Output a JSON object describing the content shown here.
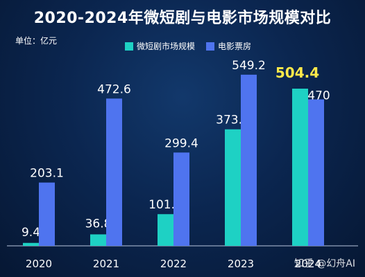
{
  "title": "2020-2024年微短剧与电影市场规模对比",
  "unit_label": "单位：亿元",
  "watermark": "知乎 @幻舟AI",
  "colors": {
    "short_drama": "#1ed1c4",
    "box_office": "#4f74ef",
    "highlight": "#ffe94a"
  },
  "legend": {
    "short_drama": "微短剧市场规模",
    "box_office": "电影票房"
  },
  "chart_data": {
    "type": "bar",
    "categories": [
      "2020",
      "2021",
      "2022",
      "2023",
      "2024"
    ],
    "series": [
      {
        "name": "微短剧市场规模",
        "values": [
          9.4,
          36.8,
          101.7,
          373.9,
          504.4
        ]
      },
      {
        "name": "电影票房",
        "values": [
          203.1,
          472.6,
          299.4,
          549.2,
          470
        ]
      }
    ],
    "value_labels": [
      [
        "9.4",
        "36.8",
        "101.7",
        "373.9",
        "504.4"
      ],
      [
        "203.1",
        "472.6",
        "299.4",
        "549.2",
        "470"
      ]
    ],
    "highlight": {
      "series": 0,
      "index": 4
    },
    "ylim": [
      0,
      600
    ],
    "grid": false,
    "legend_position": "top-center"
  }
}
